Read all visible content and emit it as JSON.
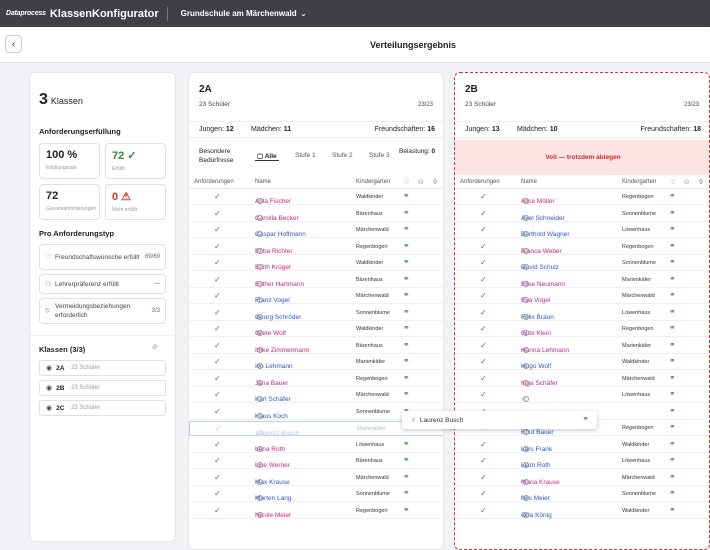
{
  "topbar": {
    "logo": "Dataprocess",
    "app": "KlassenKonfigurator",
    "school": "Grundschule am Märchenwald"
  },
  "subbar": {
    "title": "Verteilungsergebnis",
    "back_icon": "chevron-left-icon"
  },
  "sidebar": {
    "count": "3",
    "count_label": "Klassen",
    "req_heading": "Anforderungserfüllung",
    "tiles": [
      {
        "big": "100 %",
        "label": "Erfüllungsrate"
      },
      {
        "big": "72 ✓",
        "label": "Erfüllt"
      },
      {
        "big": "72",
        "label": "Gesamtanforderungen"
      },
      {
        "big": "0 ⚠",
        "label": "Nicht erfüllt"
      }
    ],
    "type_heading": "Pro Anforderungstyp",
    "types": [
      {
        "label": "Freundschaftswünsche erfüllt",
        "value": "69/69"
      },
      {
        "label": "Lehrerpräferenz erfüllt",
        "value": "—"
      },
      {
        "label": "Vermeidungsbeziehungen erforderlich",
        "value": "3/3"
      }
    ],
    "classes_heading": "Klassen (3/3)",
    "classes": [
      {
        "name": "2A",
        "sub": "· 23 Schüler"
      },
      {
        "name": "2B",
        "sub": "· 23 Schüler"
      },
      {
        "name": "2C",
        "sub": "· 23 Schüler"
      }
    ]
  },
  "panel_a": {
    "title": "2A",
    "sub": "23 Schüler",
    "frac": "23/23",
    "boys_label": "Jungen:",
    "boys": "12",
    "girls_label": "Mädchen:",
    "girls": "11",
    "friends_label": "Freundschaften:",
    "friends": "16",
    "filter_label": "Besondere Bedürfnisse",
    "tabs": [
      "Alle",
      "Stufe 1",
      "Stufe 2",
      "Stufe 3"
    ],
    "load_label": "Belastung:",
    "load": "0",
    "cols": {
      "req": "Anforderungen",
      "name": "Name",
      "kg": "Kindergarten"
    },
    "rows": [
      {
        "g": "f",
        "name": "Asta Fischer",
        "kg": "Waldkinder"
      },
      {
        "g": "f",
        "name": "Camilla Becker",
        "kg": "Bärenhaus"
      },
      {
        "g": "m",
        "name": "Caspar Hoffmann",
        "kg": "Märchenwald"
      },
      {
        "g": "f",
        "name": "Ebba Richter",
        "kg": "Regenbogen"
      },
      {
        "g": "f",
        "name": "Edith Krüger",
        "kg": "Waldkinder"
      },
      {
        "g": "f",
        "name": "Esther Hartmann",
        "kg": "Bärenhaus"
      },
      {
        "g": "m",
        "name": "Franz Vogel",
        "kg": "Märchenwald"
      },
      {
        "g": "m",
        "name": "Georg Schröder",
        "kg": "Sonnenblume"
      },
      {
        "g": "f",
        "name": "Grete Wolf",
        "kg": "Waldkinder"
      },
      {
        "g": "f",
        "name": "Imke Zimmermann",
        "kg": "Bärenhaus"
      },
      {
        "g": "m",
        "name": "Ivo Lehmann",
        "kg": "Marienkäfer"
      },
      {
        "g": "f",
        "name": "Jana Bauer",
        "kg": "Regenbogen"
      },
      {
        "g": "m",
        "name": "Karl Schäfer",
        "kg": "Märchenwald"
      },
      {
        "g": "m",
        "name": "Klaus Koch",
        "kg": "Sonnenblume"
      },
      {
        "g": "m",
        "name": "Laurenz Busch",
        "kg": "Marienkäfer",
        "ghost": true
      },
      {
        "g": "f",
        "name": "Lena Roth",
        "kg": "Löwenhaus"
      },
      {
        "g": "f",
        "name": "Lise Werner",
        "kg": "Bärenhaus"
      },
      {
        "g": "m",
        "name": "Max Krause",
        "kg": "Märchenwald"
      },
      {
        "g": "m",
        "name": "Morten Lang",
        "kg": "Sonnenblume"
      },
      {
        "g": "f",
        "name": "Nicole Meier",
        "kg": "Regenbogen"
      }
    ]
  },
  "panel_b": {
    "title": "2B",
    "sub": "23 Schüler",
    "frac": "23/23",
    "boys_label": "Jungen:",
    "boys": "13",
    "girls_label": "Mädchen:",
    "girls": "10",
    "friends_label": "Freundschaften:",
    "friends": "18",
    "banner": "Voll — trotzdem ablegen",
    "cols": {
      "req": "Anforderungen",
      "name": "Name",
      "kg": "Kindergarten"
    },
    "rows": [
      {
        "g": "f",
        "name": "Alice Möller",
        "kg": "Regenbogen"
      },
      {
        "g": "m",
        "name": "Axel Schneider",
        "kg": "Sonnenblume"
      },
      {
        "g": "m",
        "name": "Berthold Wagner",
        "kg": "Löwenhaus"
      },
      {
        "g": "f",
        "name": "Bianca Weber",
        "kg": "Regenbogen"
      },
      {
        "g": "m",
        "name": "David Schulz",
        "kg": "Sonnenblume"
      },
      {
        "g": "f",
        "name": "Elise Neumann",
        "kg": "Marienkäfer"
      },
      {
        "g": "f",
        "name": "Eva Vogel",
        "kg": "Märchenwald"
      },
      {
        "g": "m",
        "name": "Felix Braun",
        "kg": "Löwenhaus"
      },
      {
        "g": "f",
        "name": "Gitte Klein",
        "kg": "Regenbogen"
      },
      {
        "g": "f",
        "name": "Hanna Lehmann",
        "kg": "Marienkäfer"
      },
      {
        "g": "m",
        "name": "Hugo Wolf",
        "kg": "Waldkinder"
      },
      {
        "g": "f",
        "name": "Inga Schäfer",
        "kg": "Märchenwald"
      },
      {
        "g": "m",
        "name": "",
        "kg": "Löwenhaus"
      },
      {
        "g": "f",
        "name": "",
        "kg": ""
      },
      {
        "g": "m",
        "name": "Knut Bauer",
        "kg": "Regenbogen"
      },
      {
        "g": "m",
        "name": "Lars Frank",
        "kg": "Waldkinder"
      },
      {
        "g": "m",
        "name": "Liam Roth",
        "kg": "Löwenhaus"
      },
      {
        "g": "f",
        "name": "Maria Krause",
        "kg": "Märchenwald"
      },
      {
        "g": "m",
        "name": "Nils Meier",
        "kg": "Sonnenblume"
      },
      {
        "g": "m",
        "name": "Orla König",
        "kg": "Waldkinder"
      }
    ]
  },
  "drag": {
    "name": "Laurenz Busch"
  }
}
